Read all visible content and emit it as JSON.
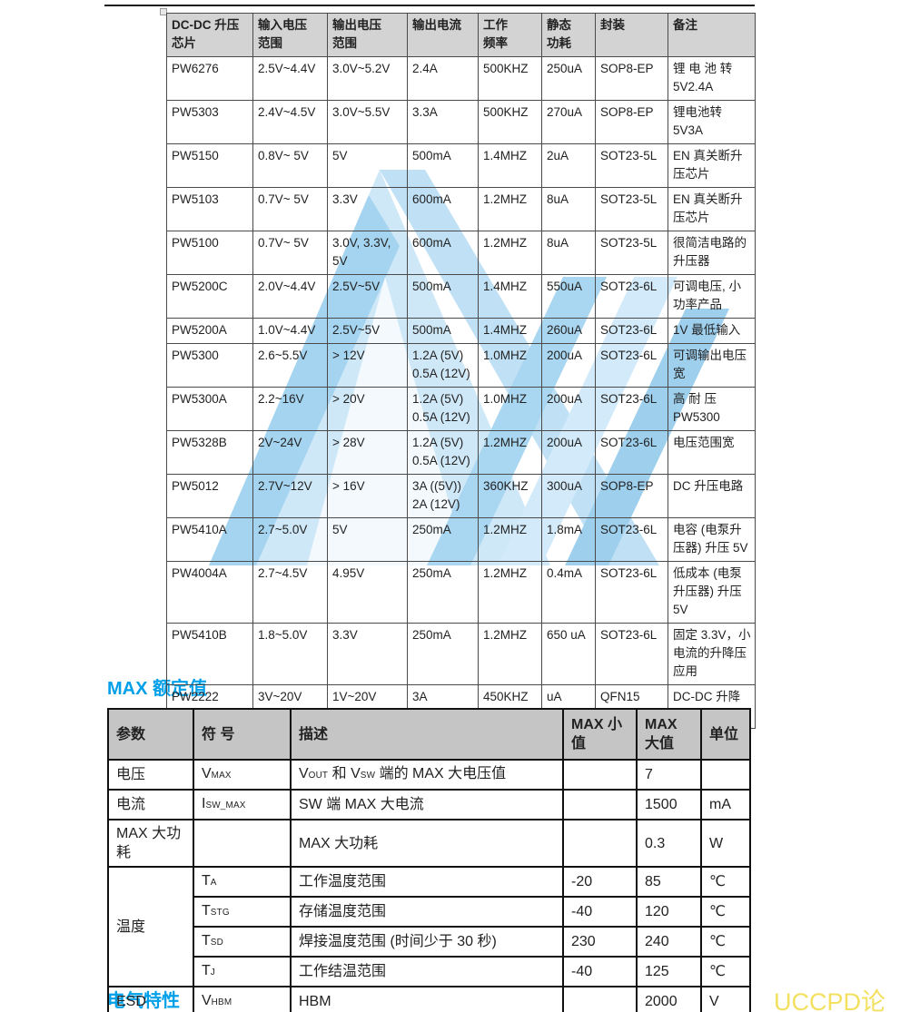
{
  "page": {
    "accent_blue": "#00A0E9",
    "forum_watermark": {
      "text": "UCCPD论坛",
      "color": "#F2E05E"
    },
    "logo_colors": {
      "light": "#cfe8f8",
      "mid": "#a9d6f0",
      "dark": "#9ed0ee",
      "pale": "#d2eaf9"
    }
  },
  "chip_table": {
    "keys": [
      "part",
      "vin",
      "vout",
      "iout",
      "freq",
      "iq",
      "package",
      "note"
    ],
    "headers": [
      "DC-DC 升压\n芯片",
      "输入电压\n范围",
      "输出电压\n范围",
      "输出电流",
      "工作\n频率",
      "静态\n功耗",
      "封装",
      "备注"
    ],
    "rows": [
      [
        "PW6276",
        "2.5V~4.4V",
        "3.0V~5.2V",
        "2.4A",
        "500KHZ",
        "250uA",
        "SOP8-EP",
        "锂 电 池 转\n5V2.4A"
      ],
      [
        "PW5303",
        "2.4V~4.5V",
        "3.0V~5.5V",
        "3.3A",
        "500KHZ",
        "270uA",
        "SOP8-EP",
        "锂电池转 5V3A"
      ],
      [
        "PW5150",
        "0.8V~ 5V",
        "5V",
        "500mA",
        "1.4MHZ",
        "2uA",
        "SOT23-5L",
        "EN 真关断升压芯片"
      ],
      [
        "PW5103",
        "0.7V~ 5V",
        "3.3V",
        "600mA",
        "1.2MHZ",
        "8uA",
        "SOT23-5L",
        "EN 真关断升压芯片"
      ],
      [
        "PW5100",
        "0.7V~ 5V",
        "3.0V, 3.3V,\n5V",
        "600mA",
        "1.2MHZ",
        "8uA",
        "SOT23-5L",
        "很简洁电路的升压器"
      ],
      [
        "PW5200C",
        "2.0V~4.4V",
        "2.5V~5V",
        "500mA",
        "1.4MHZ",
        "550uA",
        "SOT23-6L",
        "可调电压, 小功率产品"
      ],
      [
        "PW5200A",
        "1.0V~4.4V",
        "2.5V~5V",
        "500mA",
        "1.4MHZ",
        "260uA",
        "SOT23-6L",
        "1V 最低输入"
      ],
      [
        "PW5300",
        "2.6~5.5V",
        "> 12V",
        "1.2A (5V)\n0.5A (12V)",
        "1.0MHZ",
        "200uA",
        "SOT23-6L",
        "可调输出电压宽"
      ],
      [
        "PW5300A",
        "2.2~16V",
        "> 20V",
        "1.2A (5V)\n0.5A (12V)",
        "1.0MHZ",
        "200uA",
        "SOT23-6L",
        "高 耐 压\nPW5300"
      ],
      [
        "PW5328B",
        "2V~24V",
        "> 28V",
        "1.2A (5V)\n0.5A (12V)",
        "1.2MHZ",
        "200uA",
        "SOT23-6L",
        "电压范围宽"
      ],
      [
        "PW5012",
        "2.7V~12V",
        "> 16V",
        "3A ((5V))\n2A (12V)",
        "360KHZ",
        "300uA",
        "SOP8-EP",
        "DC 升压电路"
      ],
      [
        "PW5410A",
        "2.7~5.0V",
        "5V",
        "250mA",
        "1.2MHZ",
        "1.8mA",
        "SOT23-6L",
        "电容 (电泵升压器) 升压 5V"
      ],
      [
        "PW4004A",
        "2.7~4.5V",
        "4.95V",
        "250mA",
        "1.2MHZ",
        "0.4mA",
        "SOT23-6L",
        "低成本 (电泵升压器) 升压 5V"
      ],
      [
        "PW5410B",
        "1.8~5.0V",
        "3.3V",
        "250mA",
        "1.2MHZ",
        "650 uA",
        "SOT23-6L",
        "固定 3.3V，小电流的升降压应用"
      ],
      [
        "PW2222",
        "3V~20V",
        "1V~20V",
        "3A",
        "450KHZ",
        "uA",
        "QFN15",
        "DC-DC 升降压器"
      ]
    ]
  },
  "max_section": {
    "title": "MAX 额定值",
    "headers": [
      "参数",
      "符 号",
      "描述",
      "MAX 小\n值",
      "MAX\n大值",
      "单位"
    ],
    "rows": [
      {
        "param": "电压",
        "rowspan": 1,
        "sym": {
          "base": "V",
          "sub": "MAX"
        },
        "desc": [
          {
            "t": "V"
          },
          {
            "s": "OUT"
          },
          {
            "t": " 和 V"
          },
          {
            "s": "SW"
          },
          {
            "t": " 端的 MAX 大电压值"
          }
        ],
        "min": "",
        "max": "7",
        "unit": ""
      },
      {
        "param": "电流",
        "rowspan": 1,
        "sym": {
          "base": "I",
          "sub": "SW_MAX"
        },
        "desc": [
          {
            "t": "SW 端 MAX 大电流"
          }
        ],
        "min": "",
        "max": "1500",
        "unit": "mA"
      },
      {
        "param": "MAX 大功耗",
        "rowspan": 1,
        "sym": null,
        "desc": [
          {
            "t": "MAX 大功耗"
          }
        ],
        "min": "",
        "max": "0.3",
        "unit": "W"
      },
      {
        "param": "温度",
        "rowspan": 4,
        "sym": {
          "base": "T",
          "sub": "A"
        },
        "desc": [
          {
            "t": "工作温度范围"
          }
        ],
        "min": "-20",
        "max": "85",
        "unit": "℃"
      },
      {
        "param": null,
        "sym": {
          "base": "T",
          "sub": "STG"
        },
        "desc": [
          {
            "t": "存储温度范围"
          }
        ],
        "min": "-40",
        "max": "120",
        "unit": "℃"
      },
      {
        "param": null,
        "sym": {
          "base": "T",
          "sub": "SD"
        },
        "desc": [
          {
            "t": "焊接温度范围 (时间少于 30 秒)"
          }
        ],
        "min": "230",
        "max": "240",
        "unit": "℃"
      },
      {
        "param": null,
        "sym": {
          "base": "T",
          "sub": "J"
        },
        "desc": [
          {
            "t": "工作结温范围"
          }
        ],
        "min": "-40",
        "max": "125",
        "unit": "℃"
      },
      {
        "param": "ESD",
        "rowspan": 1,
        "sym": {
          "base": "V",
          "sub": "HBM"
        },
        "desc": [
          {
            "t": "HBM"
          }
        ],
        "min": "",
        "max": "2000",
        "unit": "V"
      }
    ]
  },
  "elec_section": {
    "title": "电气特性"
  }
}
